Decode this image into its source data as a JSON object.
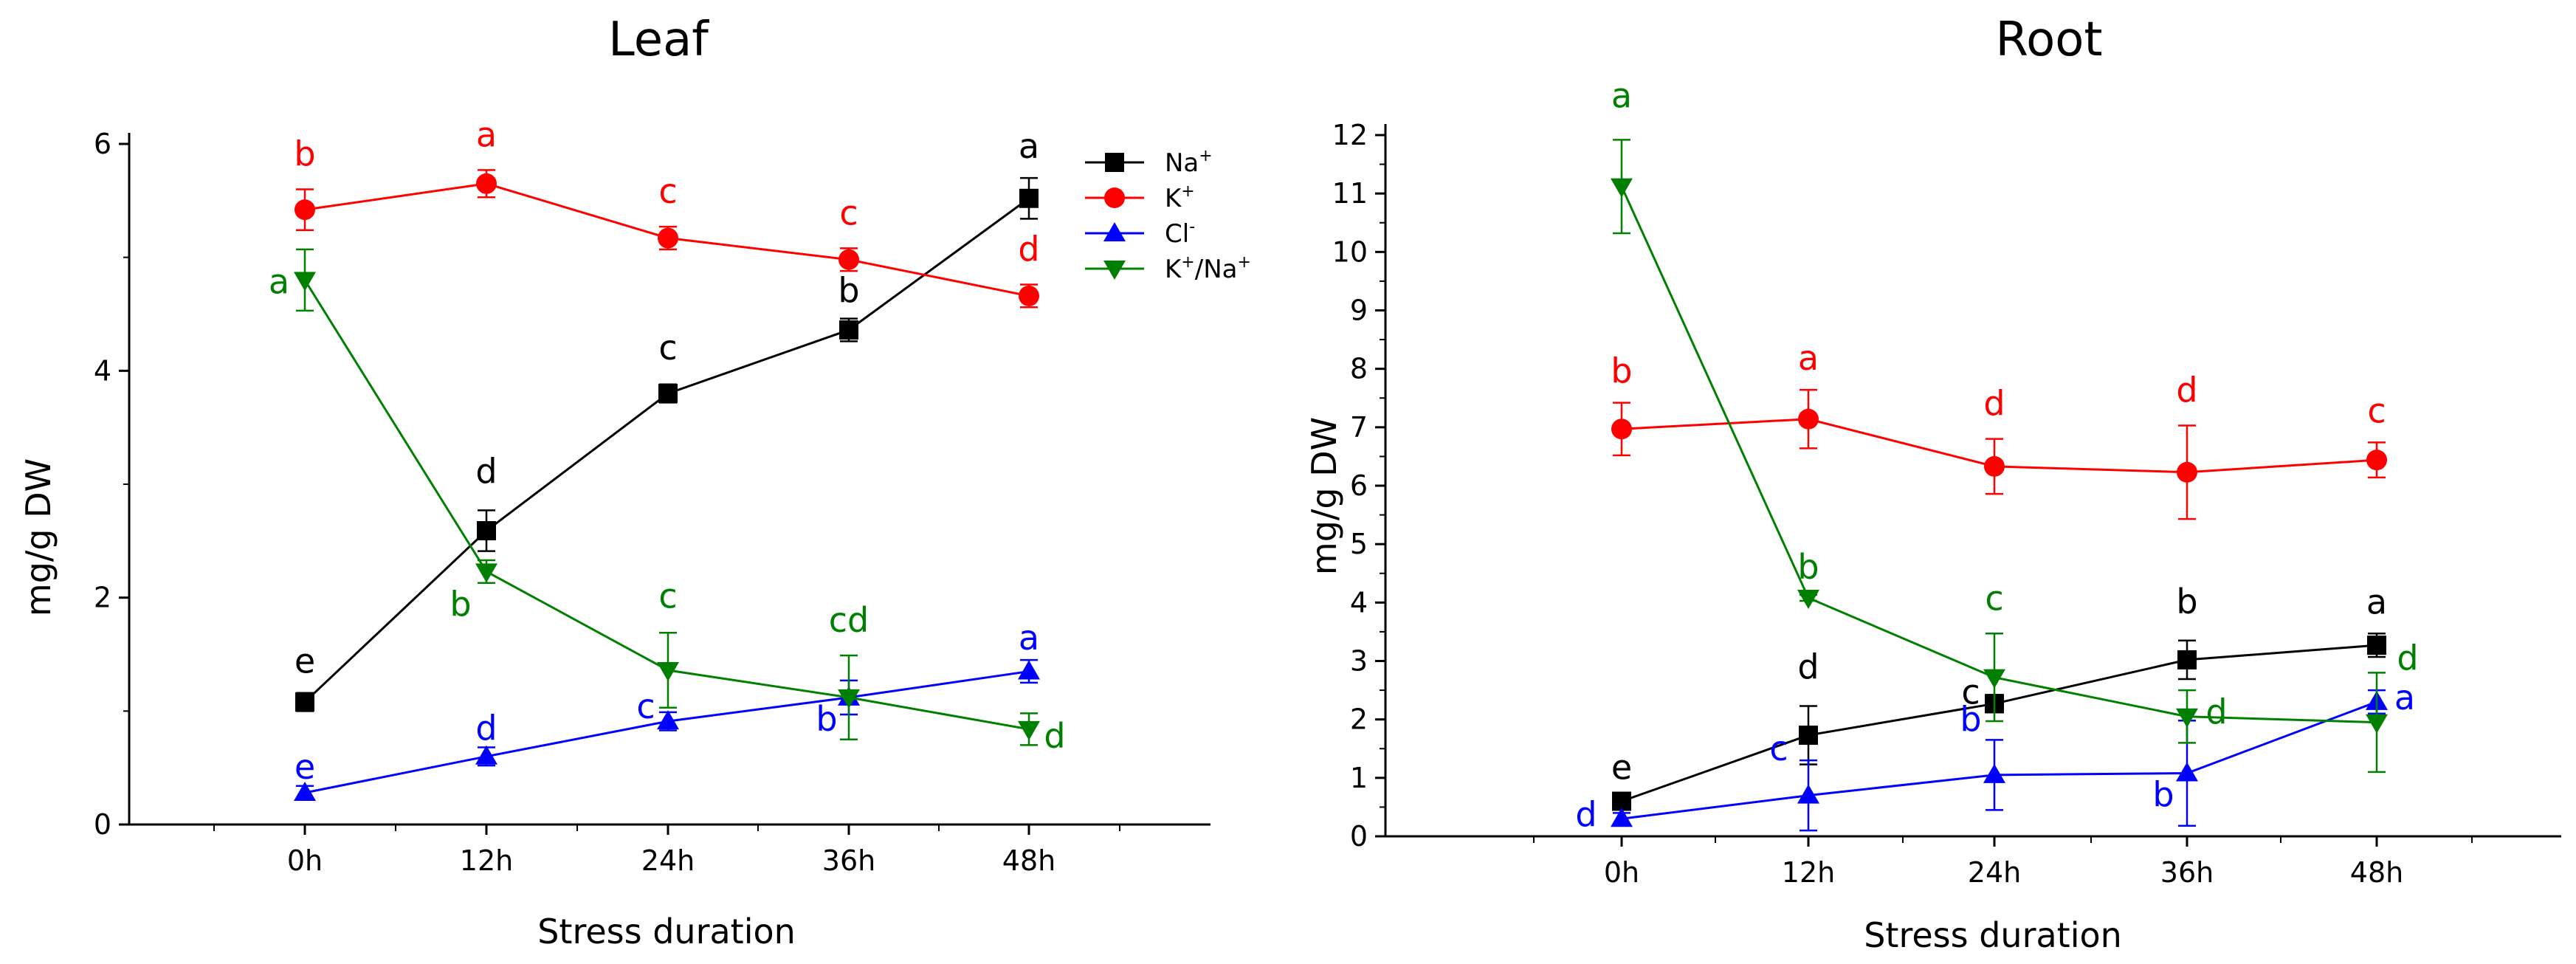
{
  "chart_data": [
    {
      "type": "line",
      "title": "Leaf",
      "xlabel": "Stress duration",
      "ylabel": "mg/g DW",
      "categories": [
        "0h",
        "12h",
        "24h",
        "36h",
        "48h"
      ],
      "ylim": [
        0,
        6
      ],
      "yticks": [
        0,
        2,
        4,
        6
      ],
      "series": [
        {
          "name": "Na+",
          "color": "#000000",
          "marker": "square",
          "values": [
            1.08,
            2.59,
            3.8,
            4.36,
            5.52
          ],
          "errors": [
            0.08,
            0.18,
            0.08,
            0.1,
            0.18
          ],
          "letters": [
            "e",
            "d",
            "c",
            "b",
            "a"
          ]
        },
        {
          "name": "K+",
          "color": "#ff0000",
          "marker": "circle",
          "values": [
            5.42,
            5.65,
            5.17,
            4.98,
            4.66
          ],
          "errors": [
            0.18,
            0.12,
            0.1,
            0.1,
            0.1
          ],
          "letters": [
            "b",
            "a",
            "c",
            "c",
            "d"
          ]
        },
        {
          "name": "Cl-",
          "color": "#0000ff",
          "marker": "triangle-up",
          "values": [
            0.28,
            0.6,
            0.91,
            1.12,
            1.35
          ],
          "errors": [
            0.06,
            0.08,
            0.08,
            0.15,
            0.1
          ],
          "letters": [
            "e",
            "d",
            "c",
            "b",
            "a"
          ]
        },
        {
          "name": "K+/Na+",
          "color": "#008000",
          "marker": "triangle-down",
          "values": [
            4.8,
            2.23,
            1.36,
            1.12,
            0.84
          ],
          "errors": [
            0.27,
            0.1,
            0.33,
            0.37,
            0.14
          ],
          "letters": [
            "a",
            "b",
            "c",
            "cd",
            "d"
          ]
        }
      ],
      "legend": {
        "position": "top-right",
        "entries": [
          {
            "base": "Na",
            "sup": "+"
          },
          {
            "base": "K",
            "sup": "+"
          },
          {
            "base": "Cl",
            "sup": "-"
          },
          {
            "base": "K",
            "sup": "+",
            "base2": "/Na",
            "sup2": "+"
          }
        ]
      }
    },
    {
      "type": "line",
      "title": "Root",
      "xlabel": "Stress duration",
      "ylabel": "mg/g DW",
      "categories": [
        "0h",
        "12h",
        "24h",
        "36h",
        "48h"
      ],
      "ylim": [
        0,
        12
      ],
      "yticks": [
        0,
        1,
        2,
        3,
        4,
        5,
        6,
        7,
        8,
        9,
        10,
        11,
        12
      ],
      "series": [
        {
          "name": "Na+",
          "color": "#000000",
          "marker": "square",
          "values": [
            0.6,
            1.73,
            2.27,
            3.02,
            3.27
          ],
          "errors": [
            0.1,
            0.5,
            0.15,
            0.33,
            0.2
          ],
          "letters": [
            "e",
            "d",
            "c",
            "b",
            "a"
          ]
        },
        {
          "name": "K+",
          "color": "#ff0000",
          "marker": "circle",
          "values": [
            6.97,
            7.14,
            6.33,
            6.23,
            6.44
          ],
          "errors": [
            0.45,
            0.5,
            0.47,
            0.8,
            0.3
          ],
          "letters": [
            "b",
            "a",
            "d",
            "d",
            "c"
          ]
        },
        {
          "name": "Cl-",
          "color": "#0000ff",
          "marker": "triangle-up",
          "values": [
            0.3,
            0.7,
            1.05,
            1.08,
            2.3
          ],
          "errors": [
            0.1,
            0.6,
            0.6,
            0.9,
            0.2
          ],
          "letters": [
            "d",
            "c",
            "b",
            "b",
            "a"
          ]
        },
        {
          "name": "K+/Na+",
          "color": "#008000",
          "marker": "triangle-down",
          "values": [
            11.12,
            4.08,
            2.72,
            2.05,
            1.95
          ],
          "errors": [
            0.8,
            0.05,
            0.75,
            0.45,
            0.85
          ],
          "letters": [
            "a",
            "b",
            "c",
            "d",
            "d"
          ]
        }
      ]
    }
  ]
}
